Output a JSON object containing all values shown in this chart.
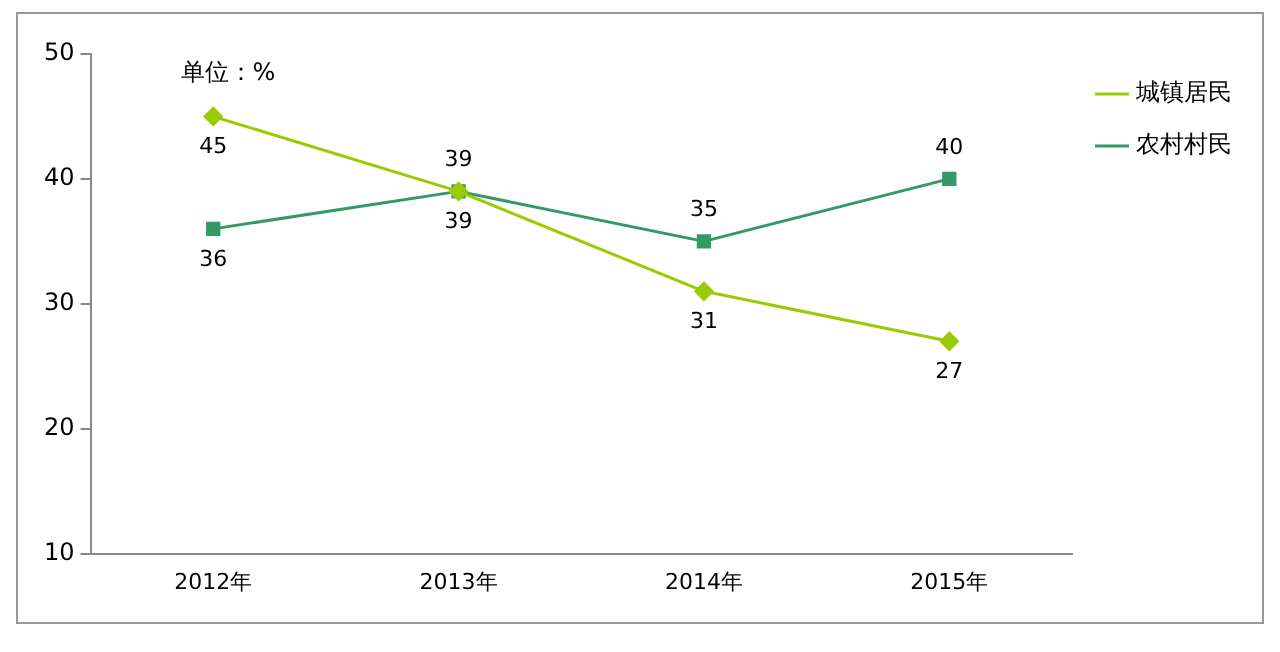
{
  "chart_data": {
    "type": "line",
    "categories": [
      "2012年",
      "2013年",
      "2014年",
      "2015年"
    ],
    "series": [
      {
        "name": "城镇居民",
        "color": "#99cc00",
        "marker": "diamond",
        "values": [
          45,
          39,
          31,
          27
        ]
      },
      {
        "name": "农村村民",
        "color": "#339966",
        "marker": "square",
        "values": [
          36,
          39,
          35,
          40
        ]
      }
    ],
    "ylim": [
      10,
      50
    ],
    "yticks": [
      10,
      20,
      30,
      40,
      50
    ],
    "grid": false,
    "legend": "top right",
    "data_labels": true,
    "line_style": "solid",
    "annotations": [
      "单位：%"
    ]
  }
}
